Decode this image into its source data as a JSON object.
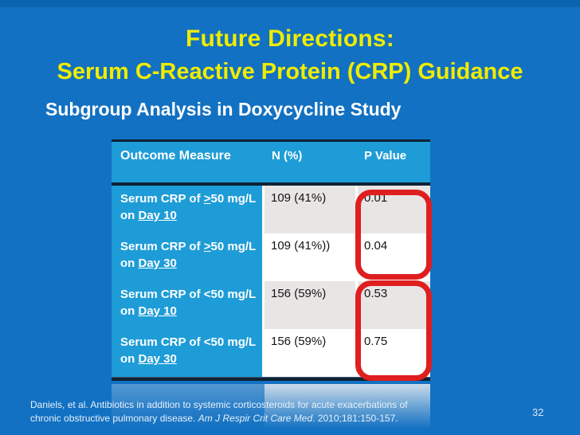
{
  "colors": {
    "background_blue": "#1271C2",
    "table_header_blue": "#1E9CD7",
    "row_shade_gray": "#E8E6E5",
    "highlight_red": "#DF1F1F",
    "title_yellow": "#EFEC00",
    "border_navy": "#0E2233"
  },
  "header": {
    "title_line1": "Future Directions:",
    "title_line2": "Serum C-Reactive Protein (CRP) Guidance",
    "subtitle": "Subgroup Analysis in Doxycycline Study"
  },
  "table": {
    "columns": [
      "Outcome Measure",
      "N (%)",
      "P Value"
    ],
    "rows": [
      {
        "measure_pre": "Serum CRP of ",
        "comparator": ">",
        "comparator_underlined": true,
        "measure_rest": "50 mg/L",
        "line2_pre": "on ",
        "day": "Day 10",
        "n_value": "109 (41%)",
        "p_value": "0.01",
        "shade": "gray"
      },
      {
        "measure_pre": "Serum CRP of ",
        "comparator": ">",
        "comparator_underlined": true,
        "measure_rest": "50 mg/L",
        "line2_pre": "on ",
        "day": "Day 30",
        "n_value": "109 (41%))",
        "p_value": "0.04",
        "shade": "white"
      },
      {
        "measure_pre": "Serum CRP of ",
        "comparator": "<",
        "comparator_underlined": false,
        "measure_rest": "50 mg/L",
        "line2_pre": "on ",
        "day": "Day 10",
        "n_value": "156 (59%)",
        "p_value": "0.53",
        "shade": "gray"
      },
      {
        "measure_pre": "Serum CRP of ",
        "comparator": "<",
        "comparator_underlined": false,
        "measure_rest": "50 mg/L",
        "line2_pre": "on ",
        "day": "Day 30",
        "n_value": "156 (59%)",
        "p_value": "0.75",
        "shade": "white"
      }
    ],
    "highlight_note": "red rounded rectangles around P Value cells: rows 1-2 and rows 3-4"
  },
  "footer": {
    "citation_line1": "Daniels, et al. Antibiotics in addition to systemic corticosteroids for acute exacerbations of",
    "citation_line2_start": "chronic obstructive pulmonary disease. ",
    "citation_line2_italic": "Am J Respir Crit Care Med",
    "citation_line2_end": ". 2010;181:150-157.",
    "page_number": "32"
  }
}
